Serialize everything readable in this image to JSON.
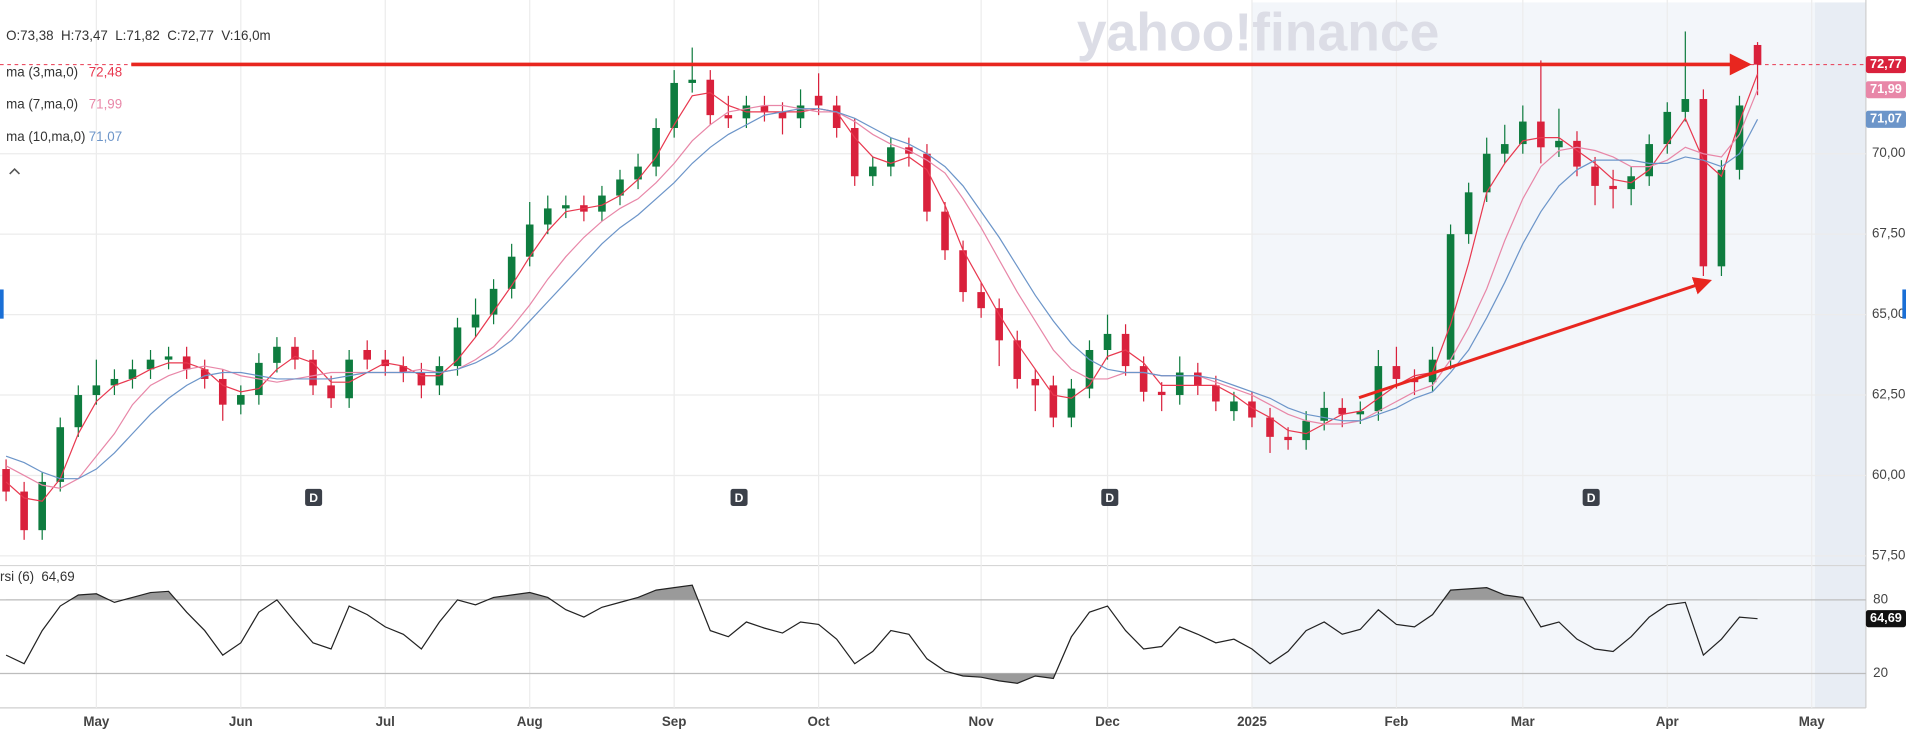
{
  "chart_data": {
    "type": "candlestick",
    "header": "O:73,38  H:73,47  L:71,82  C:72,77  V:16,0m",
    "watermark": "yahoo!finance",
    "categories": [
      null,
      null,
      null,
      null,
      null,
      "May",
      null,
      null,
      null,
      null,
      null,
      null,
      null,
      "Jun",
      null,
      null,
      null,
      null,
      null,
      null,
      null,
      "Jul",
      null,
      null,
      null,
      null,
      null,
      null,
      null,
      "Aug",
      null,
      null,
      null,
      null,
      null,
      null,
      null,
      "Sep",
      null,
      null,
      null,
      null,
      null,
      null,
      null,
      "Oct",
      null,
      null,
      null,
      null,
      null,
      null,
      null,
      null,
      "Nov",
      null,
      null,
      null,
      null,
      null,
      null,
      "Dec",
      null,
      null,
      null,
      null,
      null,
      null,
      null,
      "2025",
      null,
      null,
      null,
      null,
      null,
      null,
      null,
      "Feb",
      null,
      null,
      null,
      null,
      null,
      null,
      "Mar",
      null,
      null,
      null,
      null,
      null,
      null,
      null,
      "Apr",
      null,
      null,
      null,
      null,
      null,
      null,
      null,
      "May",
      null,
      null,
      null
    ],
    "open": [
      60.2,
      59.5,
      58.3,
      59.8,
      61.5,
      62.5,
      62.8,
      63.0,
      63.3,
      63.6,
      63.7,
      63.3,
      63.0,
      62.2,
      62.5,
      63.5,
      64.0,
      63.6,
      62.8,
      62.4,
      63.9,
      63.6,
      63.4,
      63.2,
      62.8,
      63.4,
      64.6,
      65.0,
      65.8,
      66.8,
      67.8,
      68.3,
      68.4,
      68.2,
      68.7,
      69.2,
      69.6,
      70.8,
      72.2,
      72.3,
      71.2,
      71.1,
      71.5,
      71.3,
      71.1,
      71.8,
      71.5,
      70.8,
      69.3,
      69.6,
      70.2,
      70.0,
      68.2,
      67.0,
      65.7,
      65.2,
      64.2,
      63.0,
      62.8,
      61.8,
      62.7,
      63.9,
      64.4,
      63.4,
      62.6,
      62.5,
      63.2,
      62.8,
      62.0,
      62.3,
      61.8,
      61.2,
      61.1,
      61.7,
      62.1,
      61.9,
      62.0,
      63.4,
      63.0,
      62.9,
      63.6,
      67.5,
      68.8,
      70.0,
      70.3,
      71.0,
      70.2,
      70.4,
      69.6,
      69.0,
      68.9,
      69.3,
      70.3,
      71.3,
      71.7,
      66.5,
      69.5,
      73.38,
      null,
      null,
      null,
      null,
      null,
      null
    ],
    "high": [
      60.5,
      59.8,
      60.1,
      61.8,
      62.8,
      63.6,
      63.3,
      63.6,
      63.9,
      64.0,
      64.0,
      63.6,
      63.3,
      62.8,
      63.8,
      64.3,
      64.3,
      63.9,
      63.1,
      63.9,
      64.2,
      63.9,
      63.7,
      63.5,
      63.7,
      64.9,
      65.5,
      66.1,
      67.2,
      68.5,
      68.7,
      68.7,
      68.7,
      69.0,
      69.5,
      70.0,
      71.1,
      72.6,
      73.3,
      72.6,
      71.8,
      71.8,
      71.8,
      71.6,
      72.0,
      72.5,
      71.8,
      71.1,
      69.9,
      70.5,
      70.5,
      70.3,
      68.5,
      67.3,
      66.0,
      65.5,
      64.5,
      63.3,
      63.1,
      63.0,
      64.2,
      65.0,
      64.7,
      63.7,
      62.9,
      63.7,
      63.5,
      63.1,
      62.6,
      62.6,
      62.1,
      61.5,
      62.0,
      62.6,
      62.4,
      62.3,
      63.9,
      64.0,
      63.3,
      64.0,
      67.8,
      69.1,
      70.5,
      70.9,
      71.5,
      72.9,
      71.4,
      70.7,
      69.9,
      69.5,
      69.6,
      70.6,
      71.6,
      73.8,
      72.0,
      69.8,
      71.8,
      73.47,
      null,
      null,
      null,
      null,
      null,
      null
    ],
    "low": [
      59.2,
      58.0,
      58.0,
      59.5,
      61.2,
      62.2,
      62.5,
      62.7,
      63.0,
      63.3,
      63.0,
      62.7,
      61.7,
      61.9,
      62.2,
      63.2,
      63.3,
      62.5,
      62.1,
      62.1,
      63.3,
      63.1,
      62.9,
      62.4,
      62.5,
      63.1,
      64.3,
      64.7,
      65.5,
      66.5,
      67.5,
      68.0,
      67.9,
      67.9,
      68.4,
      68.9,
      69.3,
      70.5,
      71.9,
      70.9,
      70.8,
      70.8,
      71.0,
      70.6,
      70.8,
      71.2,
      70.5,
      69.0,
      69.0,
      69.3,
      69.6,
      67.9,
      66.7,
      65.4,
      64.9,
      63.4,
      62.7,
      62.0,
      61.5,
      61.5,
      62.4,
      63.6,
      63.1,
      62.3,
      62.0,
      62.2,
      62.5,
      62.0,
      61.7,
      61.5,
      60.7,
      60.8,
      60.8,
      61.4,
      61.5,
      61.6,
      61.7,
      62.7,
      62.5,
      62.6,
      63.3,
      67.2,
      68.5,
      69.7,
      70.0,
      69.7,
      69.9,
      69.3,
      68.4,
      68.3,
      68.4,
      69.0,
      70.0,
      71.0,
      66.2,
      66.2,
      69.2,
      71.82,
      null,
      null,
      null,
      null,
      null,
      null
    ],
    "close": [
      59.5,
      58.3,
      59.8,
      61.5,
      62.5,
      62.8,
      63.0,
      63.3,
      63.6,
      63.7,
      63.3,
      63.0,
      62.2,
      62.5,
      63.5,
      64.0,
      63.6,
      62.8,
      62.4,
      63.6,
      63.6,
      63.4,
      63.2,
      62.8,
      63.4,
      64.6,
      65.0,
      65.8,
      66.8,
      67.8,
      68.3,
      68.4,
      68.2,
      68.7,
      69.2,
      69.6,
      70.8,
      72.2,
      72.3,
      71.2,
      71.1,
      71.5,
      71.3,
      71.1,
      71.5,
      71.5,
      70.8,
      69.3,
      69.6,
      70.2,
      70.0,
      68.2,
      67.0,
      65.7,
      65.2,
      64.2,
      63.0,
      62.8,
      61.8,
      62.7,
      63.9,
      64.4,
      63.4,
      62.6,
      62.5,
      63.2,
      62.8,
      62.3,
      62.3,
      61.8,
      61.2,
      61.1,
      61.7,
      62.1,
      61.9,
      62.0,
      63.4,
      63.0,
      62.9,
      63.6,
      67.5,
      68.8,
      70.0,
      70.3,
      71.0,
      70.2,
      70.4,
      69.6,
      69.0,
      68.9,
      69.3,
      70.3,
      71.3,
      71.7,
      66.5,
      69.5,
      71.5,
      72.77,
      null,
      null,
      null,
      null,
      null,
      null
    ],
    "close_label": "72,77",
    "up_color": "#0e7c3f",
    "down_color": "#d9213c",
    "series": [
      {
        "name": "ma (3,ma,0)",
        "color": "#e8384f",
        "value_label": "72,48",
        "values": [
          59.8,
          59.3,
          59.2,
          59.9,
          61.3,
          62.3,
          62.8,
          63.0,
          63.3,
          63.5,
          63.5,
          63.3,
          62.8,
          62.6,
          62.7,
          63.3,
          63.7,
          63.5,
          62.9,
          62.9,
          63.2,
          63.5,
          63.4,
          63.1,
          63.1,
          63.6,
          64.3,
          65.1,
          65.9,
          66.8,
          67.6,
          68.2,
          68.3,
          68.4,
          68.7,
          69.2,
          69.9,
          70.9,
          71.8,
          71.9,
          71.5,
          71.3,
          71.3,
          71.3,
          71.3,
          71.4,
          71.3,
          70.5,
          69.9,
          69.7,
          69.9,
          69.5,
          68.4,
          67.0,
          66.0,
          65.0,
          64.1,
          63.3,
          62.5,
          62.4,
          62.8,
          63.7,
          63.9,
          63.5,
          62.8,
          62.8,
          62.8,
          62.8,
          62.5,
          62.1,
          61.8,
          61.4,
          61.3,
          61.6,
          61.9,
          62.0,
          62.4,
          62.8,
          63.1,
          63.2,
          64.7,
          66.6,
          68.8,
          69.7,
          70.4,
          70.5,
          70.5,
          70.1,
          69.7,
          69.2,
          69.1,
          69.5,
          70.3,
          71.1,
          69.8,
          69.3,
          71.0,
          72.48,
          null,
          null,
          null,
          null,
          null,
          null
        ]
      },
      {
        "name": "ma (7,ma,0)",
        "color": "#e887a8",
        "value_label": "71,99",
        "values": [
          60.3,
          60.0,
          59.7,
          59.6,
          59.9,
          60.6,
          61.3,
          62.2,
          62.8,
          63.1,
          63.3,
          63.4,
          63.3,
          63.1,
          63.0,
          62.9,
          63.0,
          63.1,
          63.2,
          63.2,
          63.2,
          63.2,
          63.2,
          63.3,
          63.2,
          63.3,
          63.6,
          64.0,
          64.6,
          65.3,
          66.1,
          66.8,
          67.4,
          67.9,
          68.3,
          68.6,
          69.1,
          69.7,
          70.4,
          70.9,
          71.3,
          71.4,
          71.5,
          71.5,
          71.4,
          71.3,
          71.3,
          71.0,
          70.6,
          70.3,
          70.1,
          69.8,
          69.4,
          68.6,
          67.7,
          66.7,
          65.7,
          64.8,
          63.9,
          63.3,
          63.0,
          63.0,
          63.2,
          63.2,
          63.1,
          63.1,
          63.1,
          62.9,
          62.7,
          62.5,
          62.2,
          61.9,
          61.7,
          61.6,
          61.6,
          61.7,
          62.0,
          62.3,
          62.6,
          62.8,
          63.6,
          64.6,
          65.8,
          67.3,
          68.6,
          69.6,
          70.1,
          70.2,
          70.1,
          69.9,
          69.6,
          69.6,
          69.8,
          70.2,
          70.0,
          69.9,
          70.6,
          71.99,
          null,
          null,
          null,
          null,
          null,
          null
        ]
      },
      {
        "name": "ma (10,ma,0)",
        "color": "#6c95c9",
        "value_label": "71,07",
        "values": [
          60.6,
          60.4,
          60.1,
          59.9,
          59.9,
          60.2,
          60.7,
          61.3,
          61.9,
          62.4,
          62.8,
          63.1,
          63.2,
          63.2,
          63.1,
          63.0,
          63.0,
          63.0,
          63.0,
          63.1,
          63.2,
          63.2,
          63.2,
          63.2,
          63.2,
          63.3,
          63.5,
          63.8,
          64.2,
          64.8,
          65.4,
          66.0,
          66.6,
          67.2,
          67.7,
          68.1,
          68.6,
          69.1,
          69.7,
          70.2,
          70.6,
          70.9,
          71.2,
          71.3,
          71.4,
          71.4,
          71.3,
          71.1,
          70.8,
          70.5,
          70.3,
          70.0,
          69.6,
          69.0,
          68.2,
          67.4,
          66.5,
          65.6,
          64.8,
          64.1,
          63.6,
          63.3,
          63.2,
          63.2,
          63.1,
          63.1,
          63.1,
          63.0,
          62.8,
          62.6,
          62.4,
          62.1,
          61.9,
          61.8,
          61.7,
          61.7,
          61.9,
          62.1,
          62.4,
          62.6,
          63.2,
          63.9,
          64.9,
          66.0,
          67.2,
          68.2,
          69.0,
          69.5,
          69.8,
          69.8,
          69.8,
          69.7,
          69.7,
          69.9,
          69.8,
          69.6,
          70.0,
          71.07,
          null,
          null,
          null,
          null,
          null,
          null
        ]
      }
    ],
    "ylim": [
      57.2,
      74.4
    ],
    "yticks": [
      {
        "value": 57.5,
        "label": "57,50"
      },
      {
        "value": 60,
        "label": "60,00"
      },
      {
        "value": 62.5,
        "label": "62,50"
      },
      {
        "value": 65,
        "label": "65,00"
      },
      {
        "value": 67.5,
        "label": "67,50"
      },
      {
        "value": 70,
        "label": "70,00"
      }
    ],
    "grid": true,
    "dividends": [
      "D",
      "D",
      "D",
      "D"
    ],
    "rsi": {
      "type": "line",
      "name": "rsi (6)",
      "color": "#222222",
      "value_label": "64,69",
      "values": [
        35,
        28,
        55,
        75,
        84,
        85,
        78,
        82,
        86,
        87,
        70,
        55,
        35,
        45,
        70,
        80,
        62,
        45,
        40,
        75,
        68,
        58,
        52,
        40,
        62,
        80,
        76,
        82,
        84,
        86,
        82,
        72,
        66,
        74,
        78,
        82,
        88,
        90,
        92,
        55,
        50,
        62,
        57,
        53,
        62,
        60,
        48,
        28,
        38,
        55,
        52,
        32,
        22,
        18,
        17,
        14,
        12,
        18,
        16,
        50,
        70,
        75,
        55,
        40,
        42,
        58,
        52,
        45,
        48,
        40,
        28,
        38,
        55,
        62,
        52,
        56,
        72,
        60,
        58,
        68,
        88,
        89,
        90,
        84,
        82,
        58,
        62,
        48,
        40,
        38,
        50,
        66,
        76,
        78,
        35,
        48,
        66,
        64.69,
        null,
        null,
        null,
        null,
        null,
        null
      ],
      "ylim": [
        -8,
        108
      ],
      "yticks": [
        20,
        80
      ]
    }
  }
}
